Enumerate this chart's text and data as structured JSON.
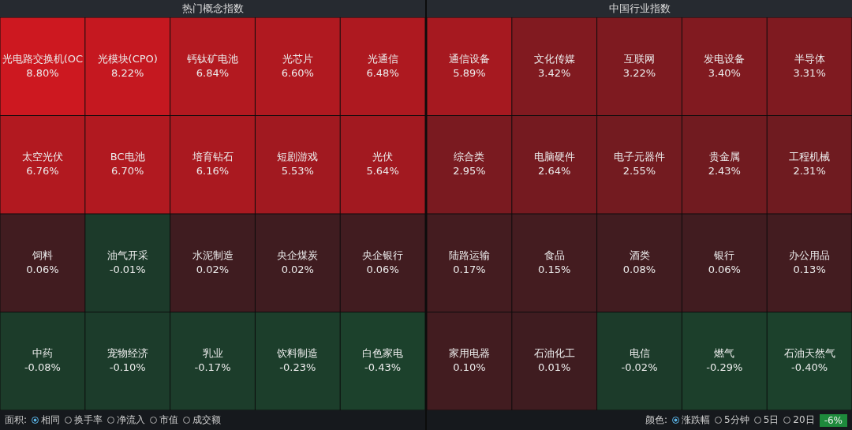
{
  "chart_data": [
    {
      "type": "other",
      "title": "热门概念指数",
      "categories": [
        "光电路交换机(OC",
        "光模块(CPO)",
        "钙钛矿电池",
        "光芯片",
        "光通信",
        "太空光伏",
        "BC电池",
        "培育钻石",
        "短剧游戏",
        "光伏",
        "饲料",
        "油气开采",
        "水泥制造",
        "央企煤炭",
        "央企银行",
        "中药",
        "宠物经济",
        "乳业",
        "饮料制造",
        "白色家电"
      ],
      "values": [
        8.8,
        8.22,
        6.84,
        6.6,
        6.48,
        6.76,
        6.7,
        6.16,
        5.53,
        5.64,
        0.06,
        -0.01,
        0.02,
        0.02,
        0.06,
        -0.08,
        -0.1,
        -0.17,
        -0.23,
        -0.43
      ],
      "value_labels": [
        "8.80%",
        "8.22%",
        "6.84%",
        "6.60%",
        "6.48%",
        "6.76%",
        "6.70%",
        "6.16%",
        "5.53%",
        "5.64%",
        "0.06%",
        "-0.01%",
        "0.02%",
        "0.02%",
        "0.06%",
        "-0.08%",
        "-0.10%",
        "-0.17%",
        "-0.23%",
        "-0.43%"
      ],
      "annotations": [
        "面积:",
        "相同",
        "换手率",
        "净流入",
        "市值",
        "成交额"
      ]
    },
    {
      "type": "other",
      "title": "中国行业指数",
      "categories": [
        "通信设备",
        "文化传媒",
        "互联网",
        "发电设备",
        "半导体",
        "综合类",
        "电脑硬件",
        "电子元器件",
        "贵金属",
        "工程机械",
        "陆路运输",
        "食品",
        "酒类",
        "银行",
        "办公用品",
        "家用电器",
        "石油化工",
        "电信",
        "燃气",
        "石油天然气"
      ],
      "values": [
        5.89,
        3.42,
        3.22,
        3.4,
        3.31,
        2.95,
        2.64,
        2.55,
        2.43,
        2.31,
        0.17,
        0.15,
        0.08,
        0.06,
        0.13,
        0.1,
        0.01,
        -0.02,
        -0.29,
        -0.4
      ],
      "value_labels": [
        "5.89%",
        "3.42%",
        "3.22%",
        "3.40%",
        "3.31%",
        "2.95%",
        "2.64%",
        "2.55%",
        "2.43%",
        "2.31%",
        "0.17%",
        "0.15%",
        "0.08%",
        "0.06%",
        "0.13%",
        "0.10%",
        "0.01%",
        "-0.02%",
        "-0.29%",
        "-0.40%"
      ],
      "annotations": [
        "颜色:",
        "涨跌幅",
        "5分钟",
        "5日",
        "20日",
        "-6%"
      ]
    }
  ]
}
